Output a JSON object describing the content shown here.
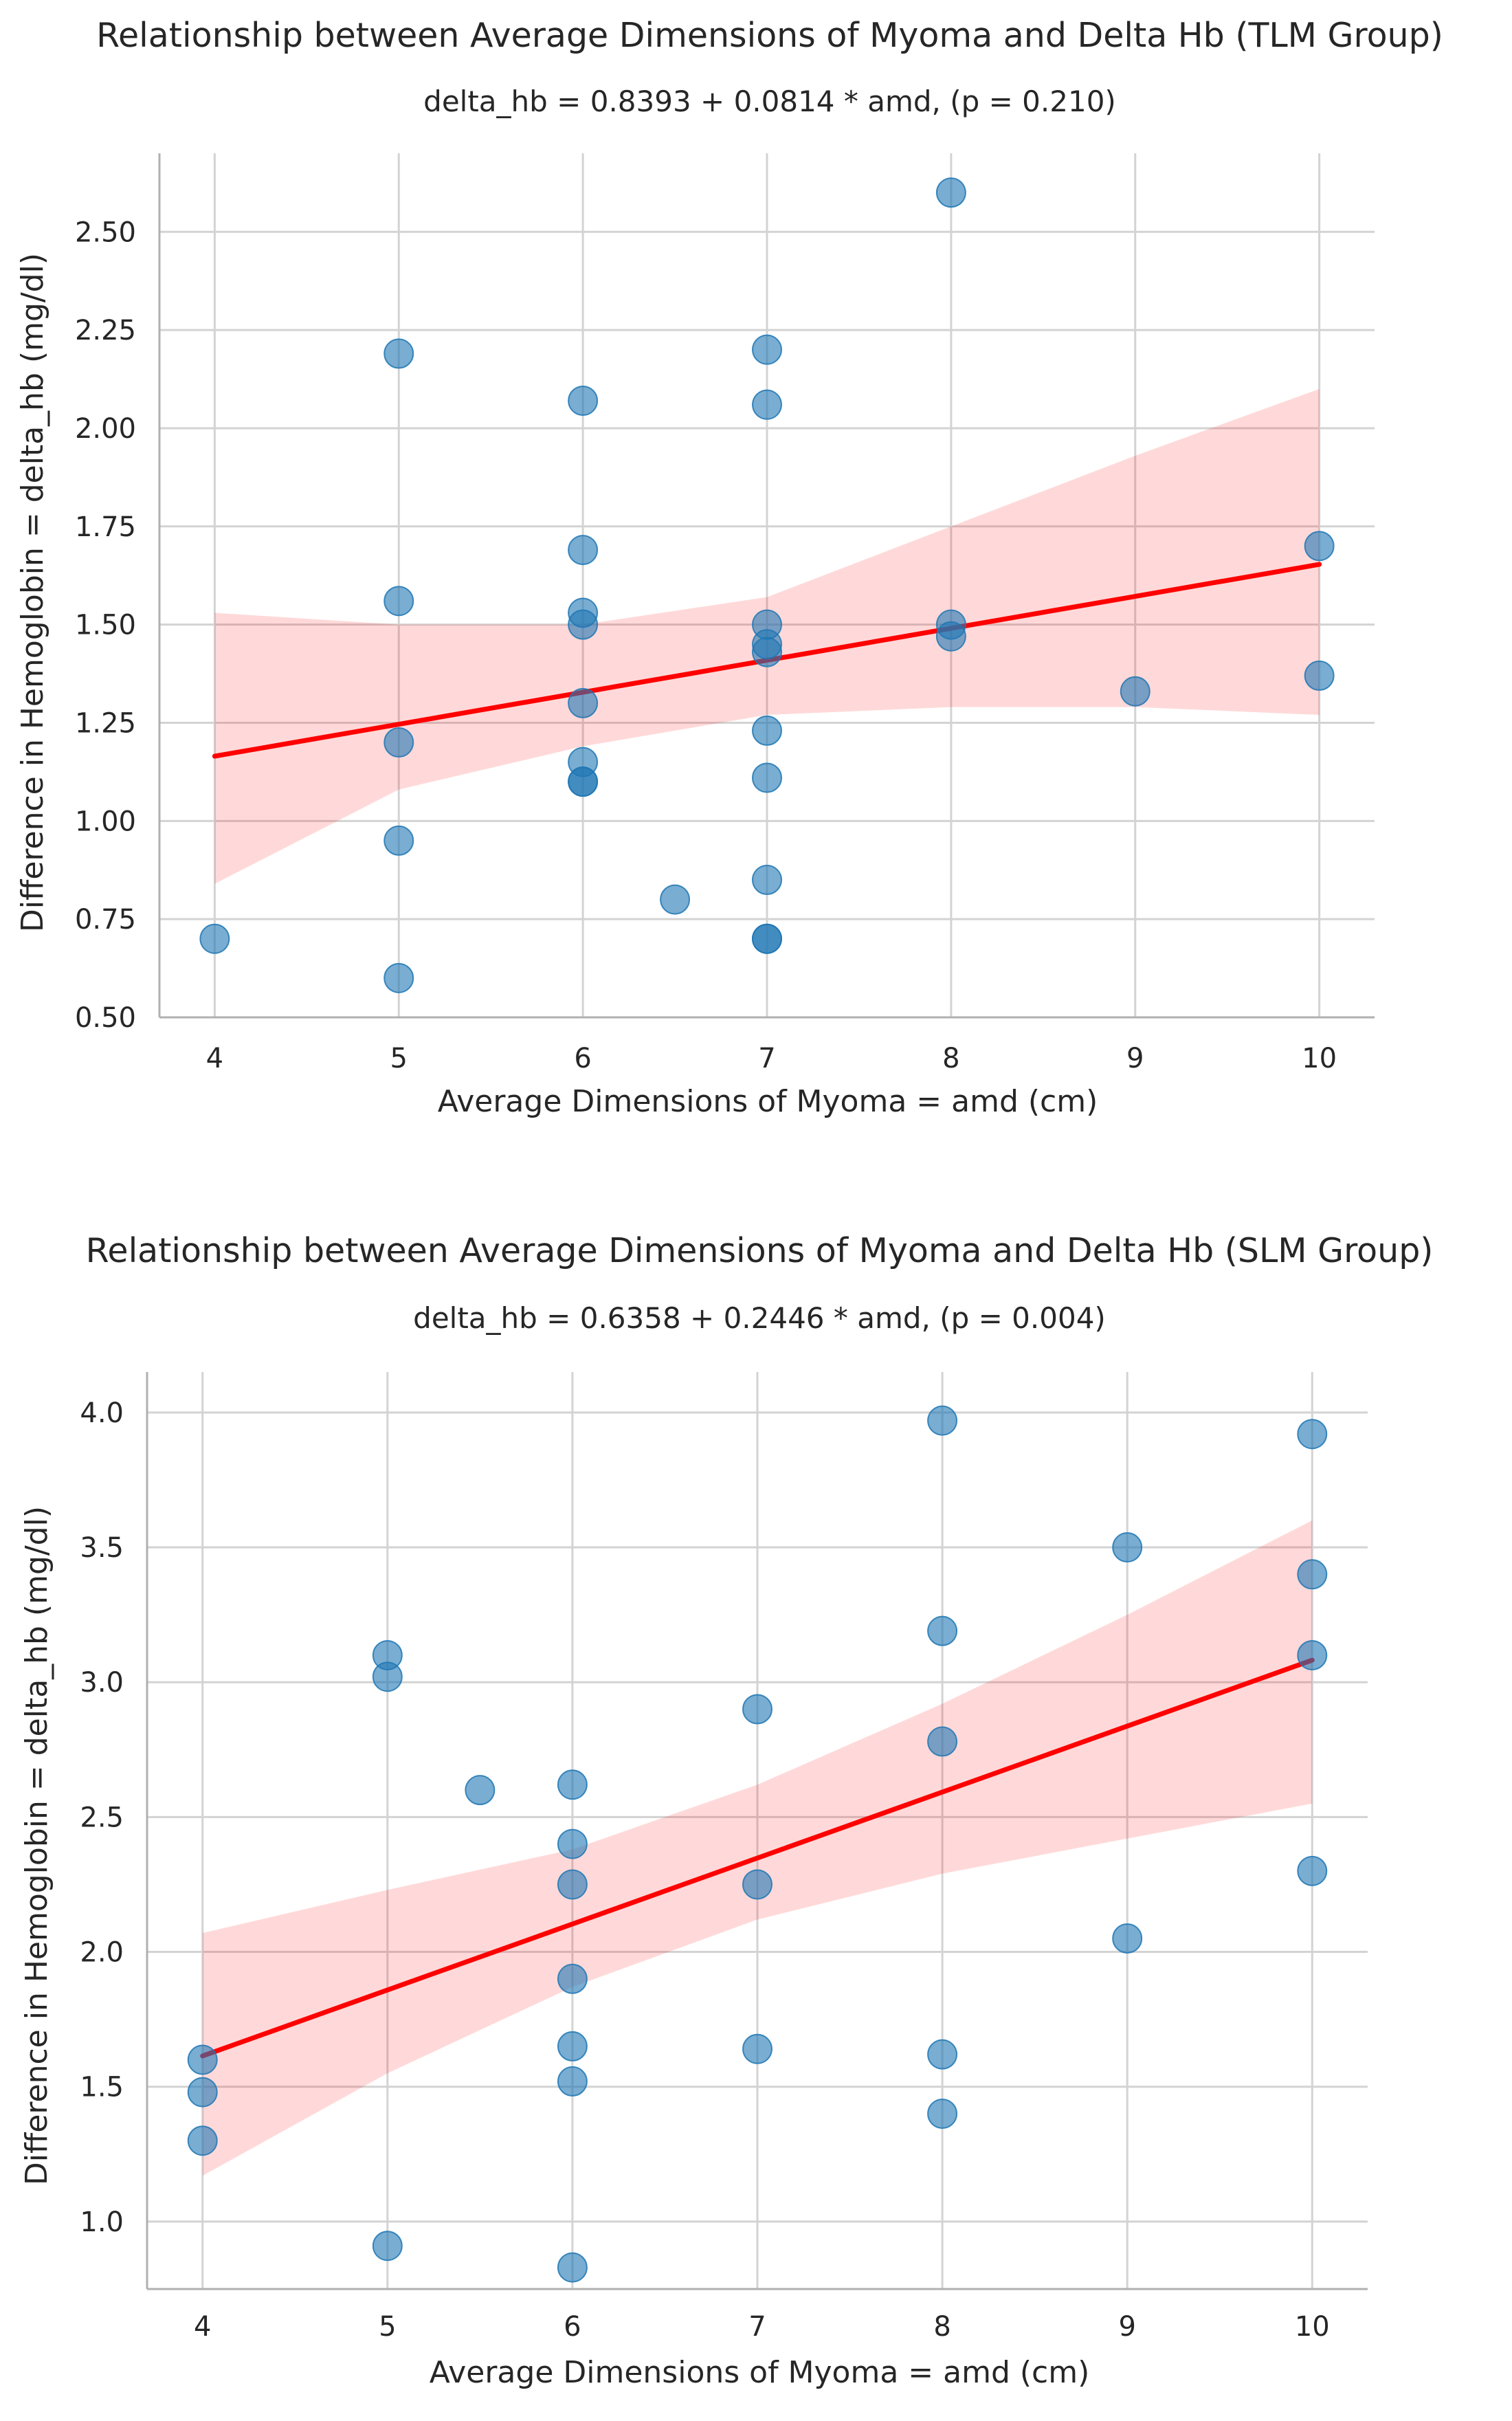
{
  "chart_data": [
    {
      "type": "scatter",
      "title": "Relationship between Average Dimensions of Myoma and Delta Hb (TLM Group)",
      "subtitle": "delta_hb = 0.8393 + 0.0814 * amd, (p = 0.210)",
      "xlabel": "Average Dimensions of Myoma = amd (cm)",
      "ylabel": "Difference in Hemoglobin = delta_hb (mg/dl)",
      "xlim": [
        3.7,
        10.3
      ],
      "ylim": [
        0.5,
        2.7
      ],
      "xticks": [
        4,
        5,
        6,
        7,
        8,
        9,
        10
      ],
      "xtick_labels": [
        "4",
        "5",
        "6",
        "7",
        "8",
        "9",
        "10"
      ],
      "yticks": [
        0.5,
        0.75,
        1.0,
        1.25,
        1.5,
        1.75,
        2.0,
        2.25,
        2.5
      ],
      "ytick_labels": [
        "0.50",
        "0.75",
        "1.00",
        "1.25",
        "1.50",
        "1.75",
        "2.00",
        "2.25",
        "2.50"
      ],
      "grid": true,
      "regression": {
        "intercept": 0.8393,
        "slope": 0.0814,
        "x_range": [
          4,
          10
        ]
      },
      "confidence_band": {
        "x": [
          4,
          5,
          6,
          7,
          8,
          9,
          10
        ],
        "lower": [
          0.84,
          1.08,
          1.19,
          1.27,
          1.29,
          1.29,
          1.27
        ],
        "upper": [
          1.53,
          1.5,
          1.5,
          1.57,
          1.75,
          1.93,
          2.1
        ]
      },
      "points": {
        "x": [
          4,
          5,
          5,
          5,
          5,
          5,
          6,
          6,
          6,
          6,
          6,
          6,
          6,
          6,
          6.5,
          7,
          7,
          7,
          7,
          7,
          7,
          7,
          7,
          7,
          7,
          8,
          8,
          8,
          9,
          10,
          10
        ],
        "y": [
          0.7,
          0.6,
          0.95,
          1.2,
          1.56,
          2.19,
          1.1,
          1.15,
          1.3,
          1.5,
          1.53,
          1.69,
          2.07,
          1.1,
          0.8,
          0.7,
          0.7,
          0.85,
          1.11,
          1.23,
          1.43,
          1.45,
          1.5,
          2.06,
          2.2,
          1.47,
          1.5,
          2.6,
          1.33,
          1.37,
          1.7
        ]
      }
    },
    {
      "type": "scatter",
      "title": "Relationship between Average Dimensions of Myoma and Delta Hb (SLM Group)",
      "subtitle": "delta_hb = 0.6358 + 0.2446 * amd, (p = 0.004)",
      "xlabel": "Average Dimensions of Myoma = amd (cm)",
      "ylabel": "Difference in Hemoglobin = delta_hb (mg/dl)",
      "xlim": [
        3.7,
        10.3
      ],
      "ylim": [
        0.75,
        4.15
      ],
      "xticks": [
        4,
        5,
        6,
        7,
        8,
        9,
        10
      ],
      "xtick_labels": [
        "4",
        "5",
        "6",
        "7",
        "8",
        "9",
        "10"
      ],
      "yticks": [
        1.0,
        1.5,
        2.0,
        2.5,
        3.0,
        3.5,
        4.0
      ],
      "ytick_labels": [
        "1.0",
        "1.5",
        "2.0",
        "2.5",
        "3.0",
        "3.5",
        "4.0"
      ],
      "grid": true,
      "regression": {
        "intercept": 0.6358,
        "slope": 0.2446,
        "x_range": [
          4,
          10
        ]
      },
      "confidence_band": {
        "x": [
          4,
          5,
          6,
          7,
          8,
          9,
          10
        ],
        "lower": [
          1.17,
          1.55,
          1.87,
          2.12,
          2.29,
          2.42,
          2.55
        ],
        "upper": [
          2.07,
          2.23,
          2.38,
          2.62,
          2.92,
          3.25,
          3.6
        ]
      },
      "points": {
        "x": [
          4,
          4,
          4,
          5,
          5,
          5,
          5.5,
          6,
          6,
          6,
          6,
          6,
          6,
          6,
          7,
          7,
          7,
          8,
          8,
          8,
          8,
          8,
          9,
          9,
          10,
          10,
          10,
          10
        ],
        "y": [
          1.3,
          1.48,
          1.6,
          0.91,
          3.02,
          3.1,
          2.6,
          0.83,
          1.52,
          1.65,
          1.9,
          2.25,
          2.4,
          2.62,
          1.64,
          2.25,
          2.9,
          1.4,
          1.62,
          2.78,
          3.19,
          3.97,
          2.05,
          3.5,
          2.3,
          3.1,
          3.4,
          3.92
        ]
      }
    }
  ]
}
